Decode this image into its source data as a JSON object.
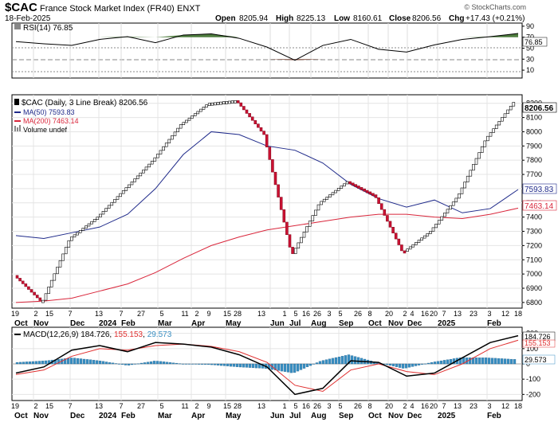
{
  "header": {
    "symbol": "$CAC",
    "name": "France Stock Market Index (FR40)",
    "exchange": "ENXT",
    "date": "18-Feb-2025",
    "open_label": "Open",
    "open": "8205.94",
    "high_label": "High",
    "high": "8225.13",
    "low_label": "Low",
    "low": "8160.61",
    "close_label": "Close",
    "close": "8206.56",
    "chg_label": "Chg",
    "chg": "+17.43 (+0.21%)",
    "copyright": "© StockCharts.com"
  },
  "rsi": {
    "legend": "RSI(14) 76.85",
    "value_label": "76.85",
    "ticks": [
      "90",
      "70",
      "50",
      "30",
      "10"
    ]
  },
  "price": {
    "legend": "$CAC (Daily, 3 Line Break) 8206.56",
    "ma50_legend": "MA(50) 7593.83",
    "ma200_legend": "MA(200) 7463.14",
    "volume_legend": "Volume undef",
    "last_label": "8206.56",
    "ma50_label": "7593.83",
    "ma200_label": "7463.14",
    "ticks": [
      "8200",
      "8100",
      "8000",
      "7900",
      "7800",
      "7700",
      "7600",
      "7500",
      "7400",
      "7300",
      "7200",
      "7100",
      "7000",
      "6900",
      "6800"
    ]
  },
  "macd": {
    "legend_prefix": "MACD(12,26,9)",
    "macd_value": "184.726",
    "signal_value": "155.153",
    "hist_value": "29.573",
    "ticks": [
      "200",
      "100",
      "0",
      "-100",
      "-200"
    ],
    "macd_label": "184.726",
    "signal_label": "155.153",
    "hist_label": "29.573"
  },
  "x_axis": {
    "day_labels": [
      "19",
      "2",
      "15",
      "7",
      "13",
      "7",
      "27",
      "5",
      "11",
      "2",
      "9",
      "15",
      "28",
      "13",
      "1",
      "5",
      "16",
      "26",
      "3",
      "5",
      "26",
      "8",
      "20",
      "2",
      "4",
      "16",
      "20",
      "7",
      "13",
      "23",
      "3",
      "12",
      "18"
    ],
    "month_labels": [
      "Oct",
      "Nov",
      "Dec",
      "2024",
      "Feb",
      "Mar",
      "Apr",
      "May",
      "Jun",
      "Jul",
      "Aug",
      "Sep",
      "Oct",
      "Nov",
      "Dec",
      "2025",
      "Feb"
    ]
  },
  "colors": {
    "up_box": "#ffffff",
    "down_box": "#cc1133",
    "ma50": "#1f2a8a",
    "ma200": "#d9263b",
    "rsi_line": "#000000",
    "rsi_fill_high": "#4f7d3f",
    "rsi_fill_low": "#7a4a3a",
    "hist": "#3a8fc2",
    "macd_line": "#000000",
    "signal_line": "#e03030"
  },
  "chart_data": [
    {
      "type": "line",
      "title": "RSI(14)",
      "ylim": [
        0,
        100
      ],
      "x": [
        "Oct-19",
        "Nov-02",
        "Nov-15",
        "Dec",
        "Jan-2024",
        "Feb",
        "Mar",
        "Apr",
        "May",
        "Jun",
        "Jul",
        "Aug",
        "Sep",
        "Oct",
        "Nov",
        "Dec",
        "Jan-2025",
        "Feb",
        "Feb-18"
      ],
      "series": [
        {
          "name": "RSI(14)",
          "values": [
            62,
            58,
            55,
            66,
            71,
            60,
            74,
            76,
            68,
            52,
            28,
            55,
            66,
            48,
            43,
            56,
            66,
            71,
            76.85
          ]
        }
      ]
    },
    {
      "type": "line",
      "title": "$CAC (Daily, 3 Line Break)",
      "ylim": [
        6760,
        8260
      ],
      "x": [
        "Oct-19",
        "Nov-02",
        "Nov-15",
        "Dec",
        "Jan-2024",
        "Feb",
        "Mar",
        "Apr",
        "May",
        "Jun",
        "Jul",
        "Aug",
        "Sep",
        "Oct",
        "Nov",
        "Dec",
        "Jan-2025",
        "Feb",
        "Feb-18"
      ],
      "series": [
        {
          "name": "$CAC",
          "values": [
            6990,
            6800,
            7250,
            7400,
            7600,
            7800,
            8050,
            8200,
            8220,
            7980,
            7130,
            7500,
            7650,
            7550,
            7150,
            7300,
            7550,
            7950,
            8206.56
          ]
        },
        {
          "name": "MA(50)",
          "values": [
            7270,
            7250,
            7290,
            7330,
            7420,
            7600,
            7840,
            8000,
            7980,
            7900,
            7870,
            7780,
            7630,
            7530,
            7470,
            7520,
            7430,
            7460,
            7593.83
          ]
        },
        {
          "name": "MA(200)",
          "values": [
            6800,
            6810,
            6830,
            6880,
            6930,
            7010,
            7110,
            7200,
            7260,
            7310,
            7340,
            7370,
            7400,
            7420,
            7420,
            7400,
            7390,
            7420,
            7463.14
          ]
        }
      ]
    },
    {
      "type": "line",
      "title": "MACD(12,26,9)",
      "ylim": [
        -240,
        240
      ],
      "x": [
        "Oct-19",
        "Nov-02",
        "Nov-15",
        "Dec",
        "Jan-2024",
        "Feb",
        "Mar",
        "Apr",
        "May",
        "Jun",
        "Jul",
        "Aug",
        "Sep",
        "Oct",
        "Nov",
        "Dec",
        "Jan-2025",
        "Feb",
        "Feb-18"
      ],
      "series": [
        {
          "name": "MACD",
          "values": [
            -60,
            -20,
            90,
            120,
            80,
            140,
            130,
            110,
            60,
            -20,
            -200,
            -160,
            20,
            10,
            -80,
            -60,
            40,
            140,
            184.726
          ]
        },
        {
          "name": "Signal",
          "values": [
            -70,
            -40,
            50,
            100,
            90,
            120,
            130,
            115,
            80,
            10,
            -140,
            -180,
            -40,
            0,
            -50,
            -70,
            0,
            100,
            155.153
          ]
        },
        {
          "name": "Histogram",
          "values": [
            10,
            20,
            40,
            20,
            -10,
            20,
            0,
            -5,
            -20,
            -30,
            -60,
            20,
            60,
            10,
            -30,
            10,
            40,
            40,
            29.573
          ]
        }
      ]
    }
  ]
}
